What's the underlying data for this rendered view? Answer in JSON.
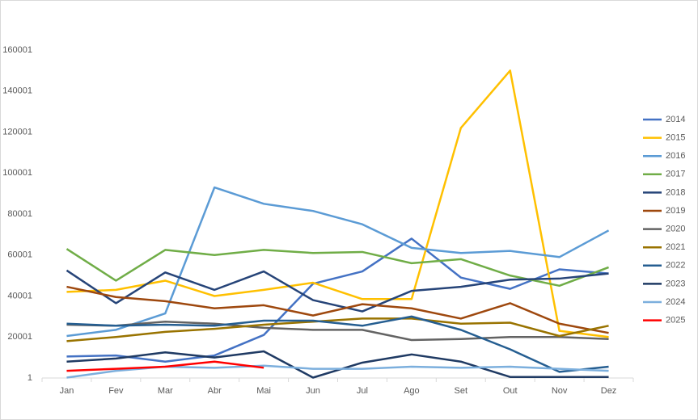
{
  "chart_data": {
    "type": "line",
    "categories": [
      "Jan",
      "Fev",
      "Mar",
      "Abr",
      "Mai",
      "Jun",
      "Jul",
      "Ago",
      "Set",
      "Out",
      "Nov",
      "Dez"
    ],
    "series": [
      {
        "name": "2014",
        "color": "#4472c4",
        "values": [
          10500,
          11000,
          8000,
          11000,
          21000,
          46000,
          52000,
          68000,
          49000,
          43500,
          53000,
          51000
        ]
      },
      {
        "name": "2015",
        "color": "#ffc000",
        "values": [
          42000,
          43000,
          47500,
          40000,
          43000,
          46500,
          38500,
          38500,
          122000,
          150000,
          23000,
          20000
        ]
      },
      {
        "name": "2016",
        "color": "#5b9bd5",
        "values": [
          20500,
          23500,
          31500,
          93000,
          85000,
          81500,
          75000,
          63500,
          61000,
          62000,
          59000,
          72000
        ]
      },
      {
        "name": "2017",
        "color": "#70ad47",
        "values": [
          63000,
          47500,
          62500,
          60000,
          62500,
          61000,
          61500,
          56000,
          58000,
          50000,
          45000,
          54000
        ]
      },
      {
        "name": "2018",
        "color": "#264478",
        "values": [
          52500,
          36500,
          51500,
          43000,
          52000,
          38000,
          32500,
          42500,
          44500,
          48000,
          48500,
          51000
        ]
      },
      {
        "name": "2019",
        "color": "#9e480e",
        "values": [
          44500,
          39500,
          37500,
          34000,
          35500,
          30500,
          36000,
          34000,
          29000,
          36500,
          26500,
          22000
        ]
      },
      {
        "name": "2020",
        "color": "#636363",
        "values": [
          26000,
          25500,
          27500,
          26500,
          24500,
          23500,
          23500,
          18500,
          19000,
          20000,
          20000,
          19000
        ]
      },
      {
        "name": "2021",
        "color": "#997300",
        "values": [
          18000,
          20000,
          22500,
          24000,
          26000,
          27500,
          29000,
          29000,
          26500,
          27000,
          20500,
          25500
        ]
      },
      {
        "name": "2022",
        "color": "#255e91",
        "values": [
          26500,
          25500,
          26000,
          25500,
          28000,
          28000,
          25500,
          30000,
          23500,
          14000,
          3000,
          5500
        ]
      },
      {
        "name": "2023",
        "color": "#1f3a63",
        "values": [
          8000,
          9500,
          12500,
          10000,
          13000,
          200,
          7500,
          11500,
          8000,
          500,
          500,
          500
        ]
      },
      {
        "name": "2024",
        "color": "#7cafdd",
        "values": [
          200,
          3500,
          5500,
          5000,
          6000,
          4500,
          4500,
          5500,
          5000,
          5500,
          4500,
          3500
        ]
      },
      {
        "name": "2025",
        "color": "#ff0000",
        "values": [
          3500,
          4500,
          5500,
          8000,
          5000,
          null,
          null,
          null,
          null,
          null,
          null,
          null
        ]
      }
    ],
    "ylim": [
      1,
      180001
    ],
    "yticks": [
      1,
      20001,
      40001,
      60001,
      80001,
      100001,
      120001,
      140001,
      160001
    ],
    "grid": false,
    "legend": "right"
  }
}
